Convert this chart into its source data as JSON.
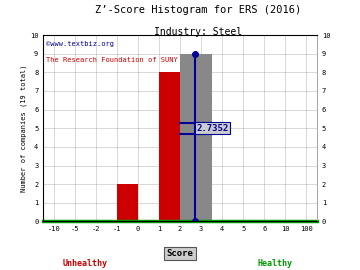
{
  "title": "Z’-Score Histogram for ERS (2016)",
  "subtitle": "Industry: Steel",
  "watermark1": "©www.textbiz.org",
  "watermark2": "The Research Foundation of SUNY",
  "xlabel": "Score",
  "ylabel": "Number of companies (19 total)",
  "zscore": 2.7352,
  "zscore_label": "2.7352",
  "ylim": [
    0,
    10
  ],
  "tick_labels": [
    "-10",
    "-5",
    "-2",
    "-1",
    "0",
    "1",
    "2",
    "3",
    "4",
    "5",
    "6",
    "10",
    "100"
  ],
  "yticks": [
    0,
    1,
    2,
    3,
    4,
    5,
    6,
    7,
    8,
    9,
    10
  ],
  "unhealthy_label": "Unhealthy",
  "healthy_label": "Healthy",
  "unhealthy_color": "#cc0000",
  "healthy_color": "#009900",
  "axis_line_color": "#009900",
  "grid_color": "#aaaaaa",
  "background_color": "#ffffff",
  "title_color": "#000000",
  "subtitle_color": "#000000",
  "watermark1_color": "#000099",
  "watermark2_color": "#cc0000",
  "zscore_line_color": "#000099",
  "zscore_label_color": "#000099",
  "zscore_label_bg": "#cccccc",
  "bar_color_red": "#cc0000",
  "bar_color_gray": "#888888"
}
